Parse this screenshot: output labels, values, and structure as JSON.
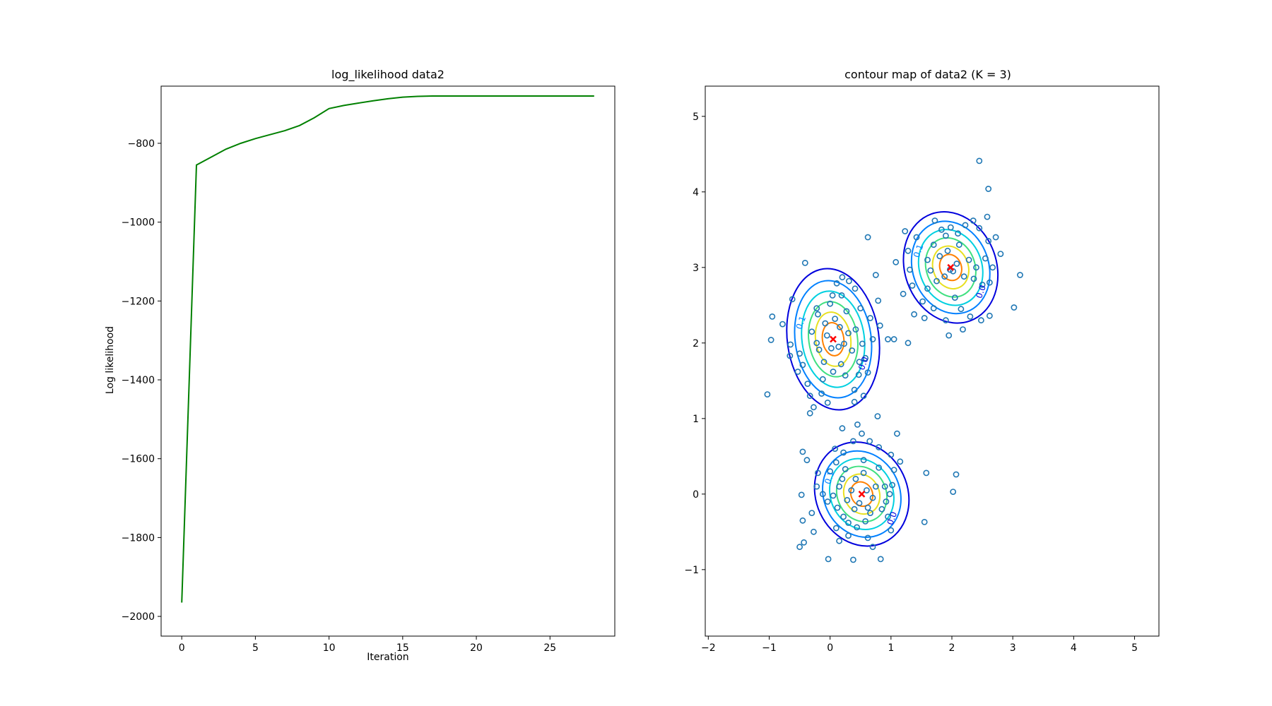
{
  "chart_data": [
    {
      "type": "line",
      "title": "log_likelihood data2",
      "xlabel": "Iteration",
      "ylabel": "Log likelihood",
      "xlim": [
        -1.4,
        29.4
      ],
      "ylim": [
        -2050,
        -655
      ],
      "xticks": [
        0,
        5,
        10,
        15,
        20,
        25
      ],
      "yticks": [
        -2000,
        -1800,
        -1600,
        -1400,
        -1200,
        -1000,
        -800
      ],
      "grid": false,
      "series": [
        {
          "color": "#008000",
          "x": [
            0,
            1,
            2,
            3,
            4,
            5,
            6,
            7,
            8,
            9,
            10,
            11,
            12,
            13,
            14,
            15,
            16,
            17,
            18,
            19,
            20,
            21,
            22,
            23,
            24,
            25,
            26,
            27,
            28
          ],
          "y": [
            -1965,
            -855,
            -835,
            -815,
            -800,
            -788,
            -778,
            -768,
            -755,
            -735,
            -712,
            -704,
            -698,
            -692,
            -687,
            -683,
            -681,
            -680,
            -680,
            -680,
            -680,
            -680,
            -680,
            -680,
            -680,
            -680,
            -680,
            -680,
            -680
          ]
        }
      ]
    },
    {
      "type": "scatter",
      "title": "contour map of data2 (K = 3)",
      "xlabel": "",
      "ylabel": "",
      "xlim": [
        -2.05,
        5.4
      ],
      "ylim": [
        -1.88,
        5.4
      ],
      "xticks": [
        -2,
        -1,
        0,
        1,
        2,
        3,
        4,
        5
      ],
      "yticks": [
        -1,
        0,
        1,
        2,
        3,
        4,
        5
      ],
      "grid": false,
      "point_color": "#1f77b4",
      "mean_color": "#ff0000",
      "contour_colors": [
        "#0000dd",
        "#0080ff",
        "#00d0e0",
        "#40e080",
        "#e8e020",
        "#ff8000"
      ],
      "contour_labels": [
        "0.0",
        "0.1"
      ],
      "clusters": [
        {
          "mean": [
            0.05,
            2.05
          ],
          "sd": [
            0.32,
            0.4
          ],
          "angle": -8
        },
        {
          "mean": [
            1.98,
            3.0
          ],
          "sd": [
            0.32,
            0.32
          ],
          "angle": -20
        },
        {
          "mean": [
            0.52,
            0.0
          ],
          "sd": [
            0.32,
            0.3
          ],
          "angle": -25
        }
      ],
      "points": [
        [
          -1.03,
          1.32
        ],
        [
          -0.95,
          2.35
        ],
        [
          -0.97,
          2.04
        ],
        [
          -0.78,
          2.25
        ],
        [
          -0.41,
          3.06
        ],
        [
          -0.62,
          2.58
        ],
        [
          -0.66,
          1.83
        ],
        [
          -0.65,
          1.98
        ],
        [
          -0.5,
          1.86
        ],
        [
          -0.53,
          1.62
        ],
        [
          -0.45,
          1.71
        ],
        [
          -0.37,
          1.46
        ],
        [
          -0.33,
          1.3
        ],
        [
          -0.27,
          1.15
        ],
        [
          -0.33,
          1.07
        ],
        [
          -0.14,
          1.33
        ],
        [
          -0.04,
          1.21
        ],
        [
          -0.2,
          2.38
        ],
        [
          -0.3,
          2.15
        ],
        [
          -0.22,
          2.0
        ],
        [
          -0.18,
          1.91
        ],
        [
          -0.1,
          1.75
        ],
        [
          0.0,
          2.52
        ],
        [
          0.04,
          2.63
        ],
        [
          0.11,
          2.79
        ],
        [
          0.2,
          2.87
        ],
        [
          0.31,
          2.82
        ],
        [
          0.41,
          2.72
        ],
        [
          0.19,
          2.63
        ],
        [
          0.27,
          2.42
        ],
        [
          0.42,
          2.18
        ],
        [
          0.53,
          1.99
        ],
        [
          0.58,
          1.8
        ],
        [
          0.62,
          1.61
        ],
        [
          0.47,
          1.58
        ],
        [
          0.4,
          1.38
        ],
        [
          0.55,
          1.3
        ],
        [
          0.4,
          1.22
        ],
        [
          0.62,
          3.4
        ],
        [
          0.75,
          2.9
        ],
        [
          0.79,
          2.56
        ],
        [
          0.82,
          2.23
        ],
        [
          0.66,
          2.33
        ],
        [
          0.7,
          2.05
        ],
        [
          0.08,
          2.32
        ],
        [
          0.16,
          2.21
        ],
        [
          -0.05,
          2.1
        ],
        [
          0.14,
          1.95
        ],
        [
          0.23,
          1.99
        ],
        [
          0.02,
          1.93
        ],
        [
          -0.08,
          2.26
        ],
        [
          0.3,
          2.13
        ],
        [
          0.36,
          1.9
        ],
        [
          -0.22,
          2.46
        ],
        [
          0.5,
          2.46
        ],
        [
          0.18,
          1.72
        ],
        [
          0.25,
          1.57
        ],
        [
          0.05,
          1.62
        ],
        [
          -0.12,
          1.52
        ],
        [
          0.48,
          1.75
        ],
        [
          0.95,
          2.05
        ],
        [
          1.08,
          3.07
        ],
        [
          1.23,
          3.48
        ],
        [
          1.28,
          3.22
        ],
        [
          1.31,
          2.97
        ],
        [
          1.35,
          2.76
        ],
        [
          1.38,
          2.38
        ],
        [
          1.55,
          2.33
        ],
        [
          1.6,
          2.72
        ],
        [
          1.65,
          2.96
        ],
        [
          1.7,
          3.3
        ],
        [
          1.72,
          3.62
        ],
        [
          1.83,
          3.5
        ],
        [
          1.9,
          3.42
        ],
        [
          1.98,
          3.53
        ],
        [
          2.1,
          3.45
        ],
        [
          2.22,
          3.56
        ],
        [
          2.35,
          3.62
        ],
        [
          2.45,
          3.52
        ],
        [
          2.58,
          3.67
        ],
        [
          2.6,
          3.35
        ],
        [
          2.72,
          3.4
        ],
        [
          2.8,
          3.18
        ],
        [
          2.67,
          3.0
        ],
        [
          2.62,
          2.8
        ],
        [
          2.5,
          2.77
        ],
        [
          2.36,
          2.85
        ],
        [
          2.2,
          2.88
        ],
        [
          2.05,
          2.6
        ],
        [
          2.15,
          2.45
        ],
        [
          2.3,
          2.35
        ],
        [
          2.48,
          2.3
        ],
        [
          2.62,
          2.36
        ],
        [
          1.9,
          2.3
        ],
        [
          1.7,
          2.46
        ],
        [
          1.52,
          2.55
        ],
        [
          2.18,
          2.18
        ],
        [
          1.95,
          2.1
        ],
        [
          1.6,
          3.1
        ],
        [
          1.8,
          3.15
        ],
        [
          1.93,
          3.22
        ],
        [
          2.02,
          2.95
        ],
        [
          1.88,
          2.88
        ],
        [
          1.75,
          2.82
        ],
        [
          2.28,
          3.1
        ],
        [
          2.4,
          3.0
        ],
        [
          2.12,
          3.3
        ],
        [
          2.45,
          4.41
        ],
        [
          2.6,
          4.04
        ],
        [
          3.12,
          2.9
        ],
        [
          3.02,
          2.47
        ],
        [
          1.2,
          2.65
        ],
        [
          1.28,
          2.0
        ],
        [
          1.05,
          2.05
        ],
        [
          1.42,
          3.4
        ],
        [
          2.55,
          3.12
        ],
        [
          1.97,
          2.97
        ],
        [
          2.08,
          3.05
        ],
        [
          -0.38,
          0.45
        ],
        [
          -0.2,
          0.28
        ],
        [
          -0.22,
          0.1
        ],
        [
          -0.12,
          0.0
        ],
        [
          -0.04,
          -0.1
        ],
        [
          0.12,
          -0.18
        ],
        [
          0.22,
          -0.3
        ],
        [
          0.1,
          -0.45
        ],
        [
          0.3,
          -0.38
        ],
        [
          0.44,
          -0.44
        ],
        [
          0.58,
          -0.36
        ],
        [
          0.66,
          -0.25
        ],
        [
          0.85,
          -0.2
        ],
        [
          0.92,
          -0.1
        ],
        [
          0.98,
          0.0
        ],
        [
          1.02,
          0.12
        ],
        [
          1.05,
          0.32
        ],
        [
          1.0,
          0.52
        ],
        [
          0.8,
          0.62
        ],
        [
          0.65,
          0.7
        ],
        [
          0.52,
          0.8
        ],
        [
          0.38,
          0.7
        ],
        [
          0.22,
          0.55
        ],
        [
          0.1,
          0.42
        ],
        [
          0.0,
          0.3
        ],
        [
          0.25,
          0.33
        ],
        [
          0.42,
          0.2
        ],
        [
          0.55,
          0.28
        ],
        [
          0.35,
          0.05
        ],
        [
          0.6,
          0.05
        ],
        [
          0.75,
          0.1
        ],
        [
          0.7,
          -0.05
        ],
        [
          0.48,
          -0.12
        ],
        [
          0.28,
          -0.08
        ],
        [
          0.15,
          0.1
        ],
        [
          0.05,
          -0.02
        ],
        [
          0.4,
          -0.2
        ],
        [
          0.62,
          -0.18
        ],
        [
          0.8,
          0.35
        ],
        [
          0.2,
          0.2
        ],
        [
          -0.45,
          0.56
        ],
        [
          -0.47,
          -0.01
        ],
        [
          -0.45,
          -0.35
        ],
        [
          -0.5,
          -0.7
        ],
        [
          -0.43,
          -0.64
        ],
        [
          -0.27,
          -0.5
        ],
        [
          -0.03,
          -0.86
        ],
        [
          0.38,
          -0.87
        ],
        [
          0.7,
          -0.7
        ],
        [
          0.83,
          -0.86
        ],
        [
          0.2,
          0.87
        ],
        [
          0.78,
          1.03
        ],
        [
          1.15,
          0.43
        ],
        [
          1.58,
          0.28
        ],
        [
          2.07,
          0.26
        ],
        [
          2.02,
          0.03
        ],
        [
          1.55,
          -0.37
        ],
        [
          1.0,
          -0.48
        ],
        [
          0.62,
          -0.58
        ],
        [
          0.15,
          -0.62
        ],
        [
          0.3,
          -0.55
        ],
        [
          0.55,
          0.45
        ],
        [
          0.9,
          0.1
        ],
        [
          0.08,
          0.6
        ],
        [
          -0.3,
          -0.25
        ],
        [
          0.95,
          -0.3
        ],
        [
          1.1,
          0.8
        ],
        [
          0.45,
          0.92
        ]
      ]
    }
  ]
}
